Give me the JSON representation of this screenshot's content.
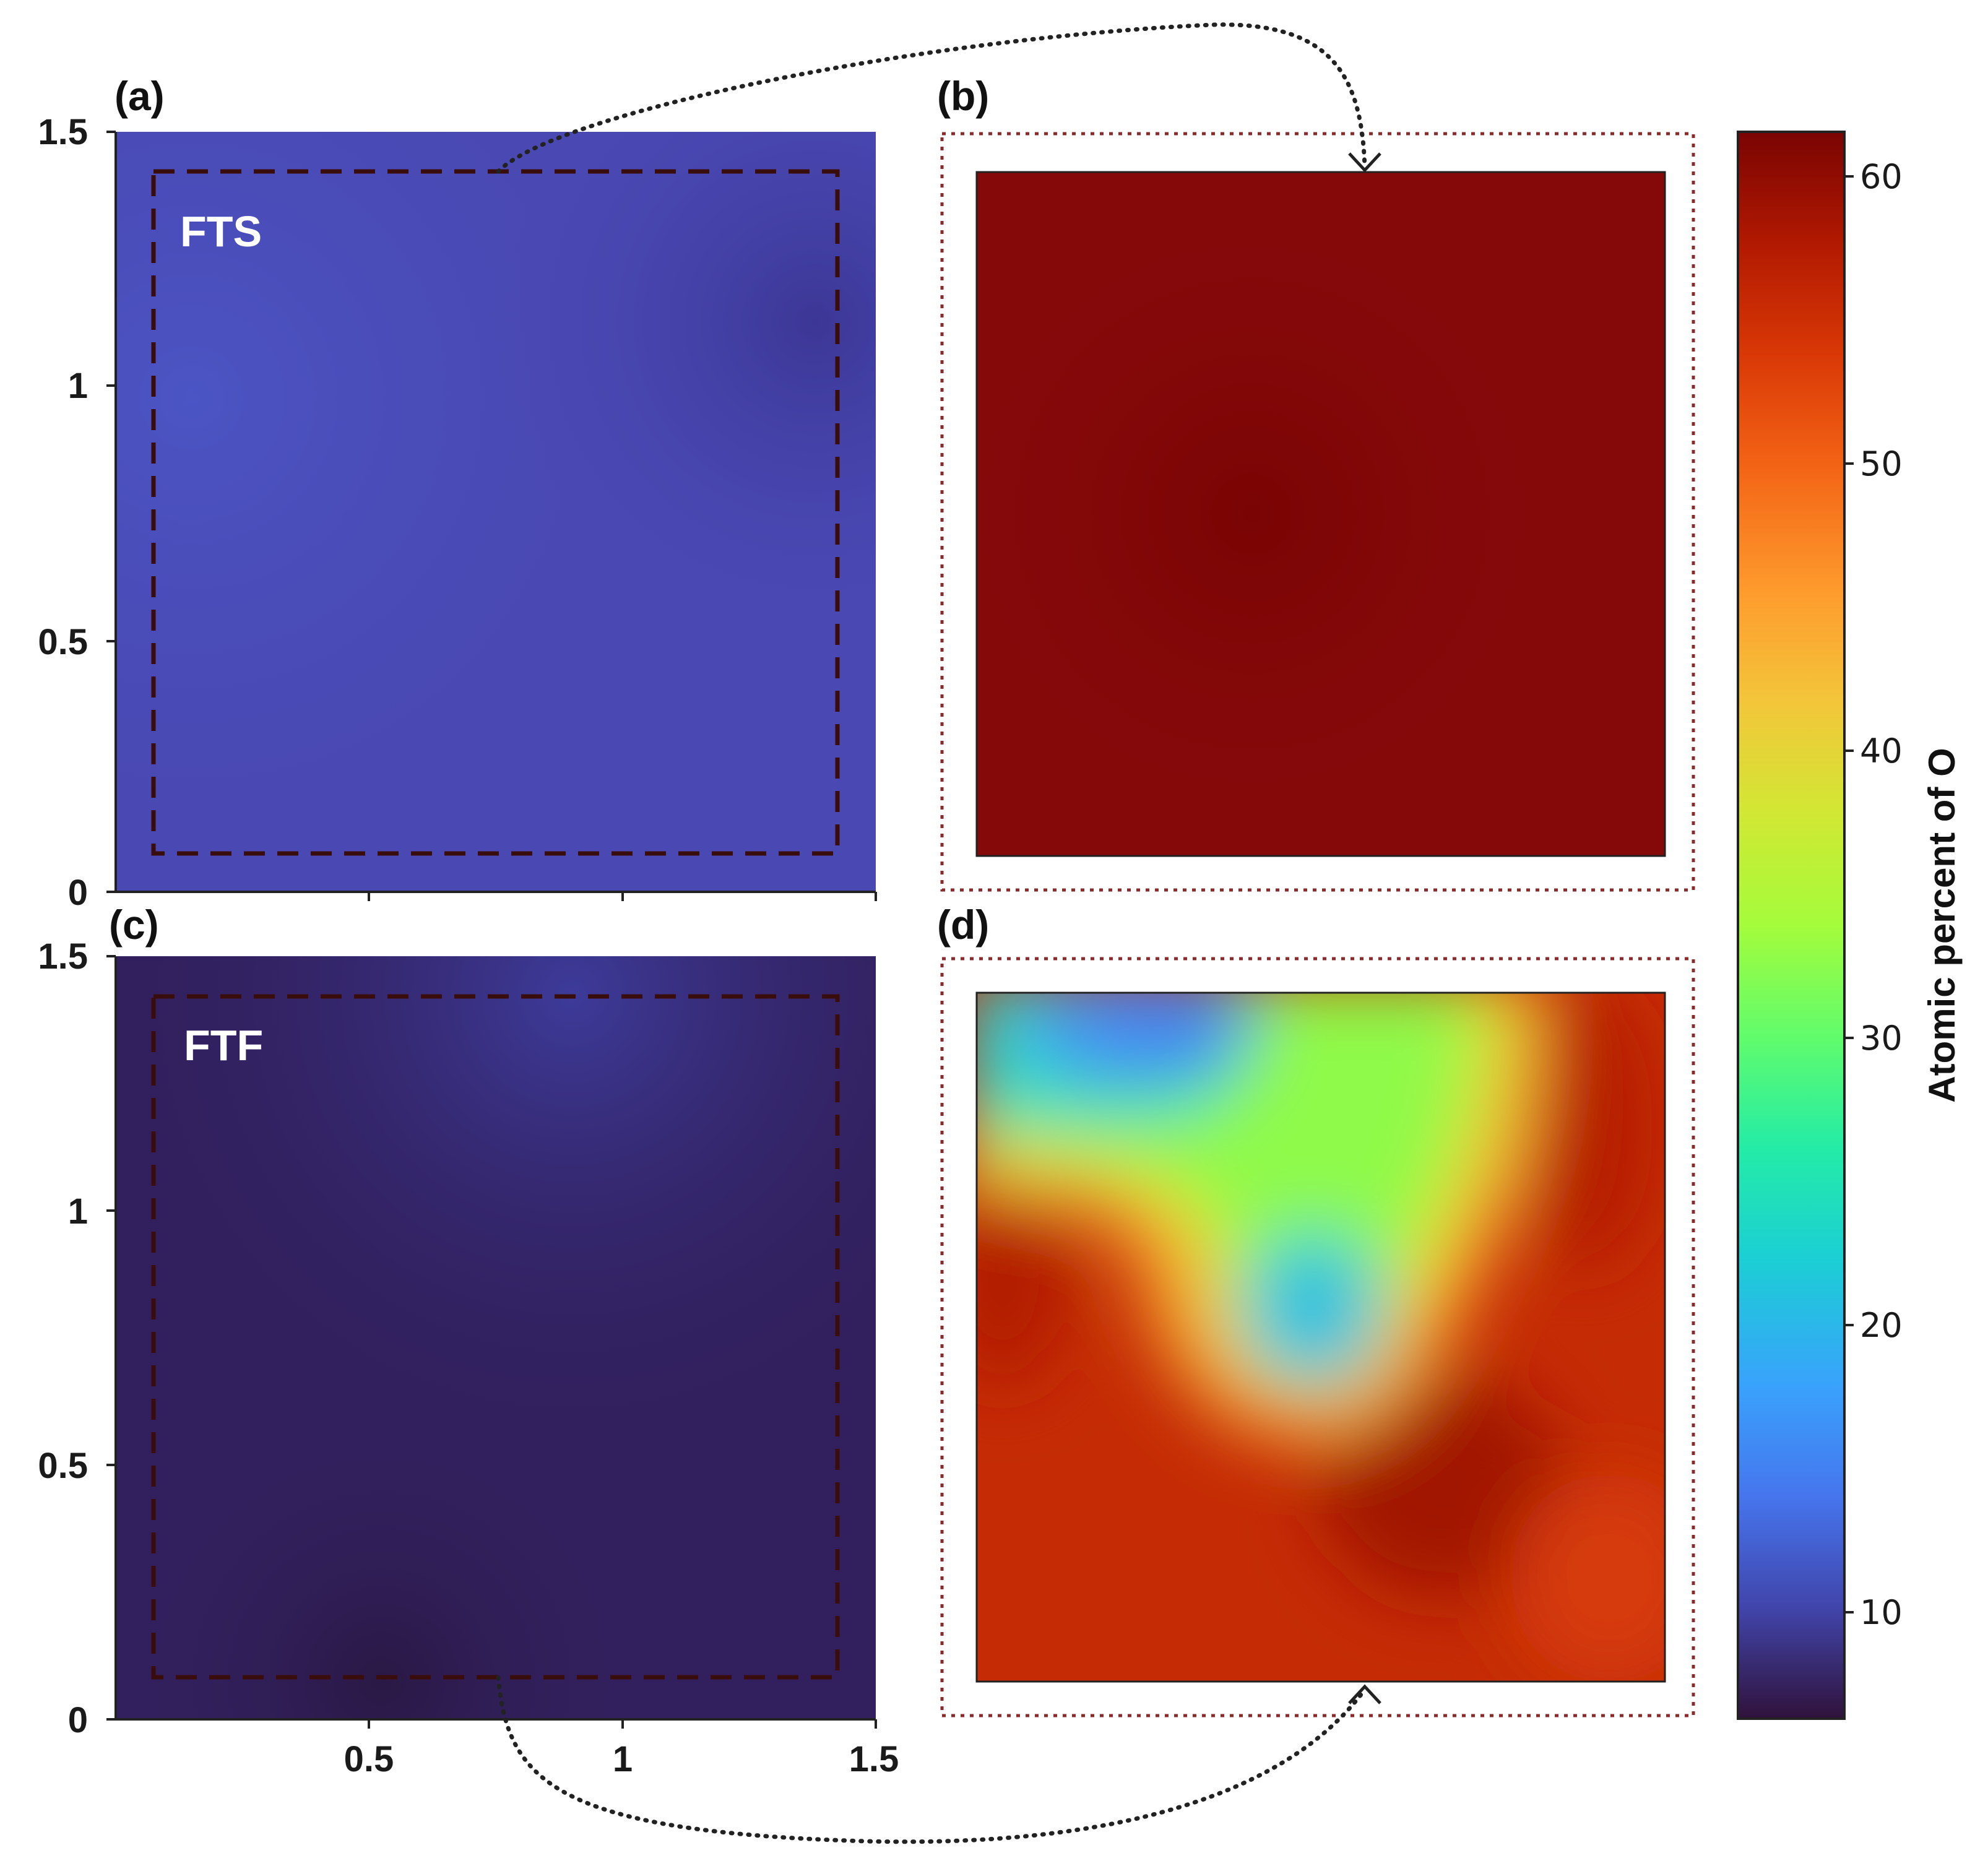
{
  "figure": {
    "panels": [
      {
        "label": "(a)",
        "sample": "FTS"
      },
      {
        "label": "(b)",
        "sample": ""
      },
      {
        "label": "(c)",
        "sample": "FTF"
      },
      {
        "label": "(d)",
        "sample": ""
      }
    ],
    "left_axis_ticks": [
      "0",
      "0.5",
      "1",
      "1.5"
    ],
    "bottom_axis_ticks": [
      "0.5",
      "1",
      "1.5"
    ],
    "colorbar": {
      "label": "Atomic percent of O",
      "ticks": [
        "10",
        "20",
        "30",
        "40",
        "50",
        "60"
      ],
      "colormap": "turbo"
    }
  },
  "chart_data": [
    {
      "type": "heatmap",
      "panel": "(a)",
      "sample": "FTS",
      "xlim": [
        0,
        1.5
      ],
      "ylim": [
        0,
        1.5
      ],
      "approx_value_range": [
        8,
        12
      ],
      "dominant_color": "#4a49b4"
    },
    {
      "type": "heatmap",
      "panel": "(b)",
      "description_of": "zoom of dashed region in (a)",
      "approx_value_range": [
        60,
        62
      ],
      "dominant_color": "#850a01"
    },
    {
      "type": "heatmap",
      "panel": "(c)",
      "sample": "FTF",
      "xlim": [
        0,
        1.5
      ],
      "ylim": [
        0,
        1.5
      ],
      "approx_value_range": [
        6,
        10
      ],
      "dominant_color": "#32205e"
    },
    {
      "type": "heatmap",
      "panel": "(d)",
      "description_of": "zoom of dashed region in (c)",
      "approx_value_range": [
        13,
        58
      ],
      "dominant_color": "#c52c05"
    }
  ],
  "colors": {
    "panel_a": "#4a49b4",
    "panel_b": "#850a01",
    "panel_c": "#32205e",
    "panel_d": "#c52c05",
    "dashed_box": "#3a0d0d",
    "connector": "#222222"
  }
}
